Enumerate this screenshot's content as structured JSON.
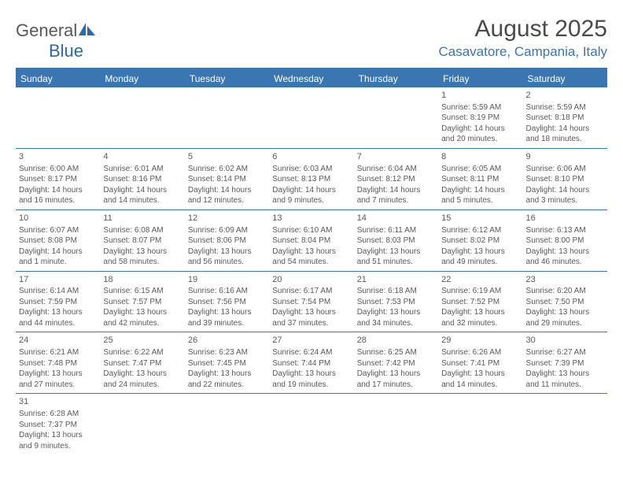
{
  "brand": {
    "general": "General",
    "blue": "Blue"
  },
  "title": "August 2025",
  "location": "Casavatore, Campania, Italy",
  "colors": {
    "accent": "#3a76b2",
    "text": "#5a5a5a",
    "heading": "#4a4a4a",
    "white": "#ffffff"
  },
  "dayNames": [
    "Sunday",
    "Monday",
    "Tuesday",
    "Wednesday",
    "Thursday",
    "Friday",
    "Saturday"
  ],
  "weeks": [
    [
      null,
      null,
      null,
      null,
      null,
      {
        "n": "1",
        "sr": "Sunrise: 5:59 AM",
        "ss": "Sunset: 8:19 PM",
        "d1": "Daylight: 14 hours",
        "d2": "and 20 minutes."
      },
      {
        "n": "2",
        "sr": "Sunrise: 5:59 AM",
        "ss": "Sunset: 8:18 PM",
        "d1": "Daylight: 14 hours",
        "d2": "and 18 minutes."
      }
    ],
    [
      {
        "n": "3",
        "sr": "Sunrise: 6:00 AM",
        "ss": "Sunset: 8:17 PM",
        "d1": "Daylight: 14 hours",
        "d2": "and 16 minutes."
      },
      {
        "n": "4",
        "sr": "Sunrise: 6:01 AM",
        "ss": "Sunset: 8:16 PM",
        "d1": "Daylight: 14 hours",
        "d2": "and 14 minutes."
      },
      {
        "n": "5",
        "sr": "Sunrise: 6:02 AM",
        "ss": "Sunset: 8:14 PM",
        "d1": "Daylight: 14 hours",
        "d2": "and 12 minutes."
      },
      {
        "n": "6",
        "sr": "Sunrise: 6:03 AM",
        "ss": "Sunset: 8:13 PM",
        "d1": "Daylight: 14 hours",
        "d2": "and 9 minutes."
      },
      {
        "n": "7",
        "sr": "Sunrise: 6:04 AM",
        "ss": "Sunset: 8:12 PM",
        "d1": "Daylight: 14 hours",
        "d2": "and 7 minutes."
      },
      {
        "n": "8",
        "sr": "Sunrise: 6:05 AM",
        "ss": "Sunset: 8:11 PM",
        "d1": "Daylight: 14 hours",
        "d2": "and 5 minutes."
      },
      {
        "n": "9",
        "sr": "Sunrise: 6:06 AM",
        "ss": "Sunset: 8:10 PM",
        "d1": "Daylight: 14 hours",
        "d2": "and 3 minutes."
      }
    ],
    [
      {
        "n": "10",
        "sr": "Sunrise: 6:07 AM",
        "ss": "Sunset: 8:08 PM",
        "d1": "Daylight: 14 hours",
        "d2": "and 1 minute."
      },
      {
        "n": "11",
        "sr": "Sunrise: 6:08 AM",
        "ss": "Sunset: 8:07 PM",
        "d1": "Daylight: 13 hours",
        "d2": "and 58 minutes."
      },
      {
        "n": "12",
        "sr": "Sunrise: 6:09 AM",
        "ss": "Sunset: 8:06 PM",
        "d1": "Daylight: 13 hours",
        "d2": "and 56 minutes."
      },
      {
        "n": "13",
        "sr": "Sunrise: 6:10 AM",
        "ss": "Sunset: 8:04 PM",
        "d1": "Daylight: 13 hours",
        "d2": "and 54 minutes."
      },
      {
        "n": "14",
        "sr": "Sunrise: 6:11 AM",
        "ss": "Sunset: 8:03 PM",
        "d1": "Daylight: 13 hours",
        "d2": "and 51 minutes."
      },
      {
        "n": "15",
        "sr": "Sunrise: 6:12 AM",
        "ss": "Sunset: 8:02 PM",
        "d1": "Daylight: 13 hours",
        "d2": "and 49 minutes."
      },
      {
        "n": "16",
        "sr": "Sunrise: 6:13 AM",
        "ss": "Sunset: 8:00 PM",
        "d1": "Daylight: 13 hours",
        "d2": "and 46 minutes."
      }
    ],
    [
      {
        "n": "17",
        "sr": "Sunrise: 6:14 AM",
        "ss": "Sunset: 7:59 PM",
        "d1": "Daylight: 13 hours",
        "d2": "and 44 minutes."
      },
      {
        "n": "18",
        "sr": "Sunrise: 6:15 AM",
        "ss": "Sunset: 7:57 PM",
        "d1": "Daylight: 13 hours",
        "d2": "and 42 minutes."
      },
      {
        "n": "19",
        "sr": "Sunrise: 6:16 AM",
        "ss": "Sunset: 7:56 PM",
        "d1": "Daylight: 13 hours",
        "d2": "and 39 minutes."
      },
      {
        "n": "20",
        "sr": "Sunrise: 6:17 AM",
        "ss": "Sunset: 7:54 PM",
        "d1": "Daylight: 13 hours",
        "d2": "and 37 minutes."
      },
      {
        "n": "21",
        "sr": "Sunrise: 6:18 AM",
        "ss": "Sunset: 7:53 PM",
        "d1": "Daylight: 13 hours",
        "d2": "and 34 minutes."
      },
      {
        "n": "22",
        "sr": "Sunrise: 6:19 AM",
        "ss": "Sunset: 7:52 PM",
        "d1": "Daylight: 13 hours",
        "d2": "and 32 minutes."
      },
      {
        "n": "23",
        "sr": "Sunrise: 6:20 AM",
        "ss": "Sunset: 7:50 PM",
        "d1": "Daylight: 13 hours",
        "d2": "and 29 minutes."
      }
    ],
    [
      {
        "n": "24",
        "sr": "Sunrise: 6:21 AM",
        "ss": "Sunset: 7:48 PM",
        "d1": "Daylight: 13 hours",
        "d2": "and 27 minutes."
      },
      {
        "n": "25",
        "sr": "Sunrise: 6:22 AM",
        "ss": "Sunset: 7:47 PM",
        "d1": "Daylight: 13 hours",
        "d2": "and 24 minutes."
      },
      {
        "n": "26",
        "sr": "Sunrise: 6:23 AM",
        "ss": "Sunset: 7:45 PM",
        "d1": "Daylight: 13 hours",
        "d2": "and 22 minutes."
      },
      {
        "n": "27",
        "sr": "Sunrise: 6:24 AM",
        "ss": "Sunset: 7:44 PM",
        "d1": "Daylight: 13 hours",
        "d2": "and 19 minutes."
      },
      {
        "n": "28",
        "sr": "Sunrise: 6:25 AM",
        "ss": "Sunset: 7:42 PM",
        "d1": "Daylight: 13 hours",
        "d2": "and 17 minutes."
      },
      {
        "n": "29",
        "sr": "Sunrise: 6:26 AM",
        "ss": "Sunset: 7:41 PM",
        "d1": "Daylight: 13 hours",
        "d2": "and 14 minutes."
      },
      {
        "n": "30",
        "sr": "Sunrise: 6:27 AM",
        "ss": "Sunset: 7:39 PM",
        "d1": "Daylight: 13 hours",
        "d2": "and 11 minutes."
      }
    ],
    [
      {
        "n": "31",
        "sr": "Sunrise: 6:28 AM",
        "ss": "Sunset: 7:37 PM",
        "d1": "Daylight: 13 hours",
        "d2": "and 9 minutes."
      },
      null,
      null,
      null,
      null,
      null,
      null
    ]
  ]
}
